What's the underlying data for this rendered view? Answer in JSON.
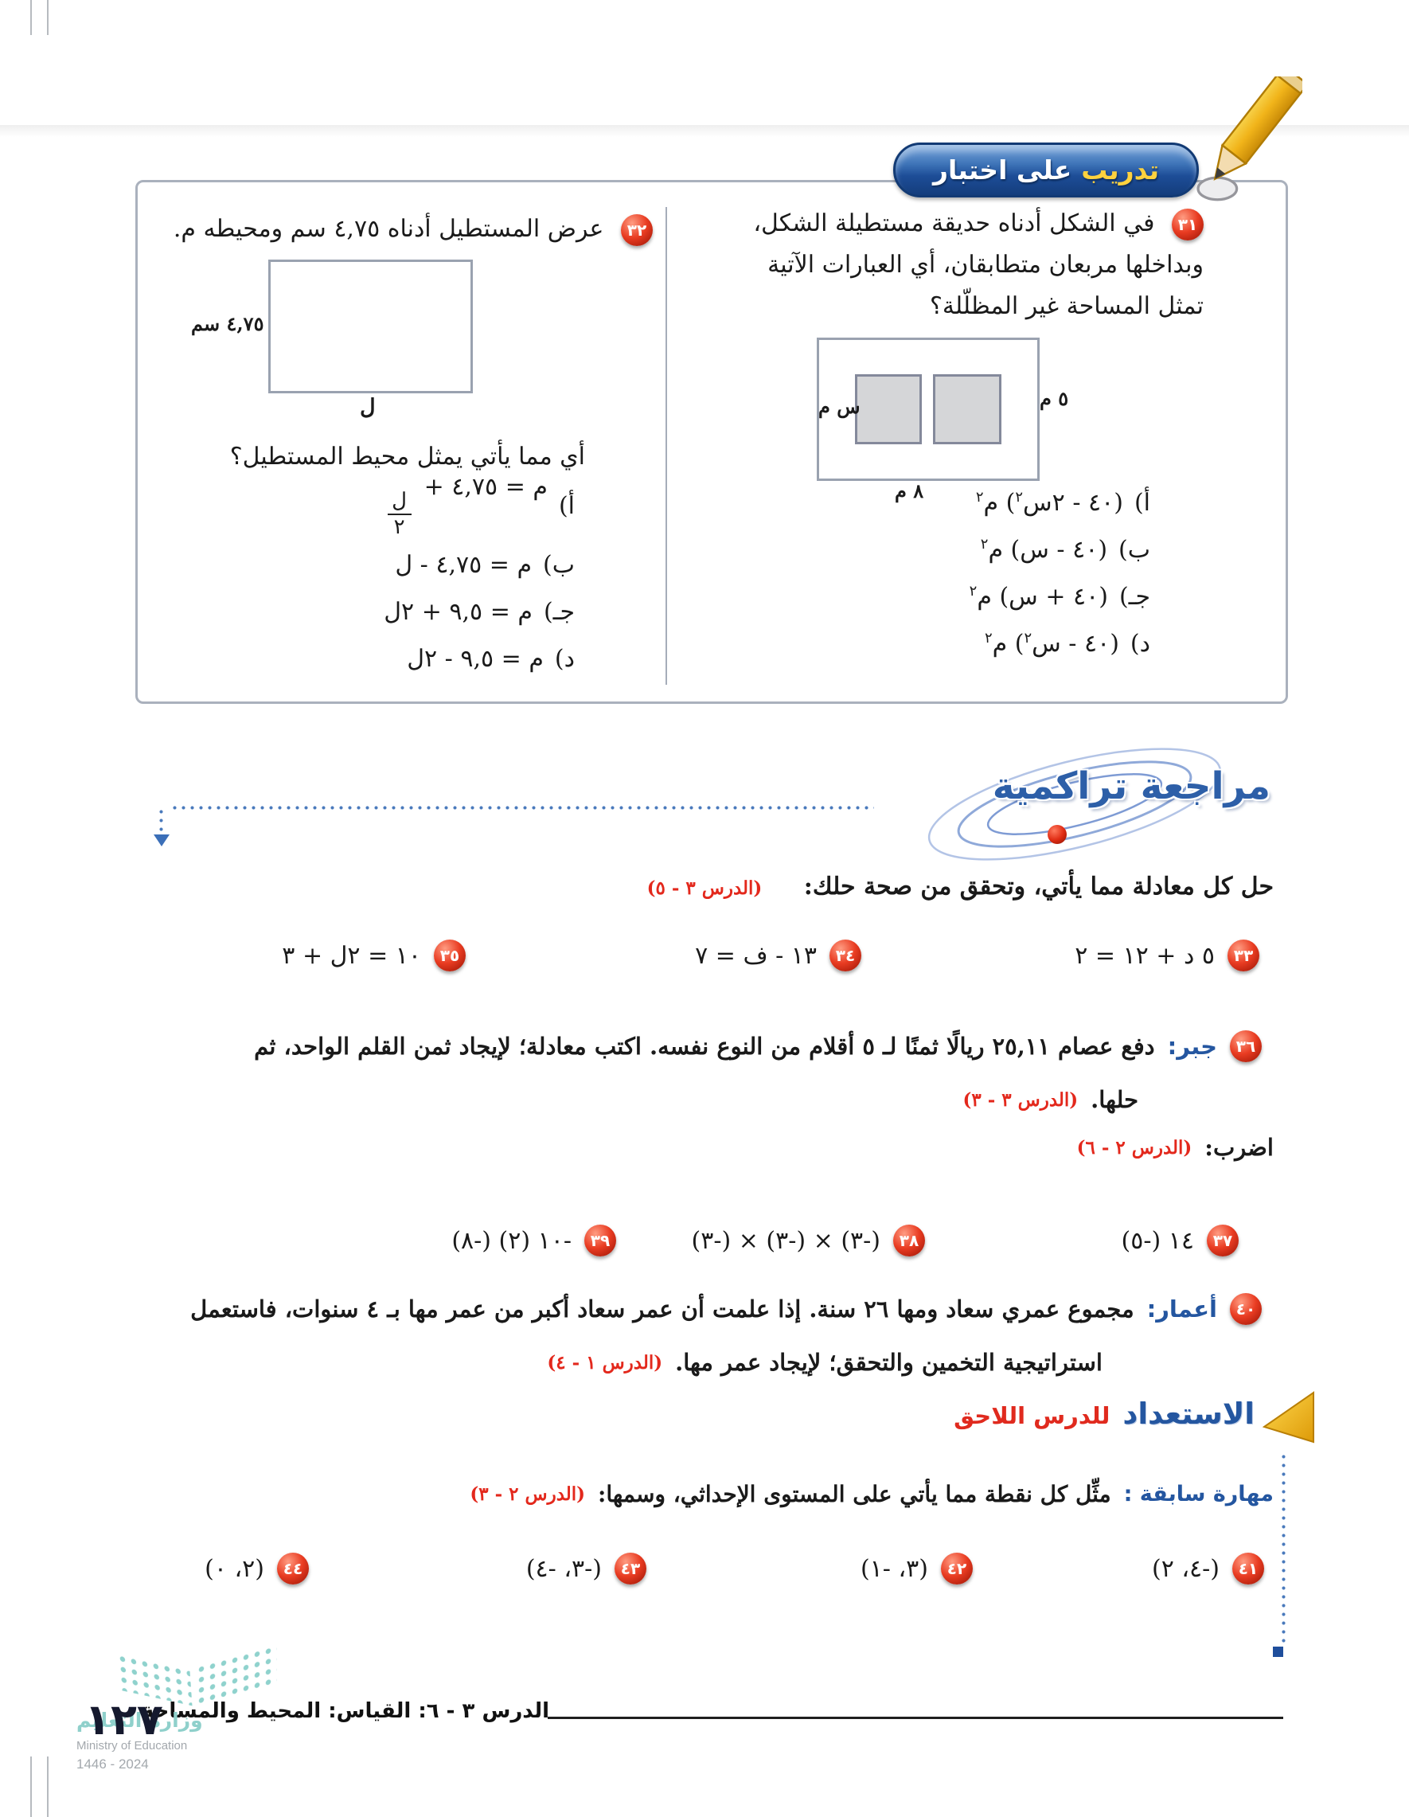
{
  "colors": {
    "accent_blue": "#2d5fa8",
    "accent_red": "#e3281c",
    "badge_red": "#e93c22",
    "pill_blue": "#1d4d97",
    "gold": "#eeb20f",
    "teal": "#8fd0cb"
  },
  "icons": {
    "header_icon": "pencil-icon",
    "review_marker": "orbit-swirl-icon",
    "next_lesson_marker": "gold-triangle-icon",
    "footer_logo": "ministry-logo"
  },
  "test_practice": {
    "title_word_highlight": "تدريب",
    "title_rest": "على اختبار",
    "q31": {
      "number": "٣١",
      "line1": "في الشكل أدناه حديقة مستطيلة الشكل،",
      "line2": "وبداخلها مربعان متطابقان، أي العبارات الآتية",
      "line3": "تمثل المساحة غير المظلّلة؟",
      "figure": {
        "right_label": "٥ م",
        "square_label": "س م",
        "bottom_label": "٨ م"
      },
      "choices": [
        {
          "label": "أ)",
          "expr_html": "(٤٠ - ٢س<sup>٢</sup>) م<sup>٢</sup>"
        },
        {
          "label": "ب)",
          "expr_html": "(٤٠ - س) م<sup>٢</sup>"
        },
        {
          "label": "جـ)",
          "expr_html": "(٤٠ + س) م<sup>٢</sup>"
        },
        {
          "label": "د)",
          "expr_html": "(٤٠ - س<sup>٢</sup>) م<sup>٢</sup>"
        }
      ]
    },
    "q32": {
      "number": "٣٢",
      "line1": "عرض المستطيل أدناه ٤,٧٥ سم ومحيطه م.",
      "figure": {
        "left_label": "٤,٧٥ سم",
        "bottom_label": "ل"
      },
      "question": "أي مما يأتي يمثل محيط المستطيل؟",
      "choices": [
        {
          "label": "أ)",
          "expr_html": "م = ٤,٧٥ + <span class='frac'><span class='fnum'>ل</span><span class='fden'>٢</span></span>"
        },
        {
          "label": "ب)",
          "expr_html": "م = ٤,٧٥ - ل"
        },
        {
          "label": "جـ)",
          "expr_html": "م = ٩,٥ + ٢ل"
        },
        {
          "label": "د)",
          "expr_html": "م = ٩,٥ - ٢ل"
        }
      ]
    }
  },
  "review": {
    "title": "مراجعة تراكمية",
    "instruction": "حل كل معادلة مما يأتي، وتحقق من صحة حلك:",
    "instruction_ref": "(الدرس ٣ - ٥)",
    "eq_problems": [
      {
        "number": "٣٣",
        "expr": "٥ د + ١٢ = ٢"
      },
      {
        "number": "٣٤",
        "expr": "١٣ - ف = ٧"
      },
      {
        "number": "٣٥",
        "expr": "١٠ = ٢ل + ٣"
      }
    ],
    "q36": {
      "number": "٣٦",
      "topic": "جبر:",
      "text": "دفع عصام ٢٥,١١ ريالًا ثمنًا لـ ٥ أقلام من النوع نفسه. اكتب معادلة؛ لإيجاد ثمن القلم الواحد، ثم",
      "line2": "حلها.",
      "ref": "(الدرس ٣ - ٣)"
    },
    "multiply_label": "اضرب:",
    "multiply_ref": "(الدرس ٢ - ٦)",
    "mult_problems": [
      {
        "number": "٣٧",
        "expr": "١٤ (-٥)"
      },
      {
        "number": "٣٨",
        "expr": "(-٣) × (-٣) × (-٣)"
      },
      {
        "number": "٣٩",
        "expr": "-١٠ (٢) (-٨)"
      }
    ],
    "q40": {
      "number": "٤٠",
      "topic": "أعمار:",
      "text": "مجموع عمري سعاد ومها ٢٦ سنة. إذا علمت أن عمر سعاد أكبر من عمر مها بـ ٤ سنوات، فاستعمل",
      "line2": "استراتيجية التخمين والتحقق؛ لإيجاد عمر مها.",
      "ref": "(الدرس ١ - ٤)"
    }
  },
  "next_lesson": {
    "title_blue": "الاستعداد",
    "title_red": "للدرس اللاحق",
    "skill_label": "مهارة سابقة :",
    "skill_text": "مثِّل كل نقطة مما يأتي على المستوى الإحداثي، وسمها:",
    "skill_ref": "(الدرس ٢ - ٣)",
    "points": [
      {
        "number": "٤١",
        "expr": "(-٤، ٢)"
      },
      {
        "number": "٤٢",
        "expr": "(٣، -١)"
      },
      {
        "number": "٤٣",
        "expr": "(-٣، -٤)"
      },
      {
        "number": "٤٤",
        "expr": "(٢، ٠)"
      }
    ]
  },
  "footer": {
    "lesson": "الدرس ٣ - ٦: القياس: المحيط والمساحة",
    "page_number": "١٢٧",
    "ministry_ar": "وزارة التعليم",
    "ministry_en": "Ministry of Education",
    "year": "2024 - 1446"
  }
}
